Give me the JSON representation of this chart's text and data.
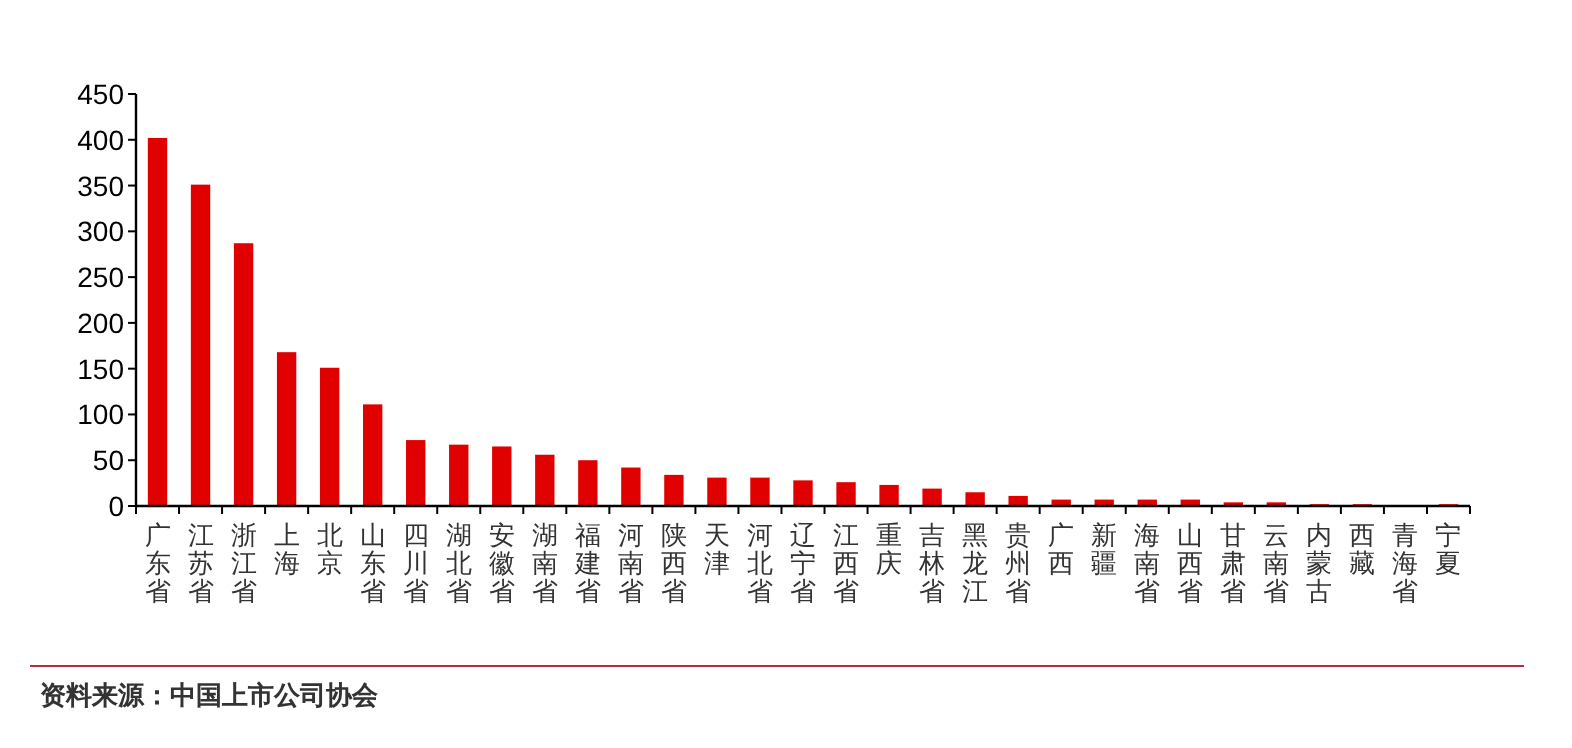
{
  "chart_data": {
    "type": "bar",
    "categories": [
      "广东省",
      "江苏省",
      "浙江省",
      "上海",
      "北京",
      "山东省",
      "四川省",
      "湖北省",
      "安徽省",
      "湖南省",
      "福建省",
      "河南省",
      "陕西省",
      "天津",
      "河北省",
      "辽宁省",
      "江西省",
      "重庆",
      "吉林省",
      "黑龙江",
      "贵州省",
      "广西",
      "新疆",
      "海南省",
      "山西省",
      "甘肃省",
      "云南省",
      "内蒙古",
      "西藏",
      "青海省",
      "宁夏"
    ],
    "values": [
      402,
      351,
      287,
      168,
      151,
      111,
      72,
      67,
      65,
      56,
      50,
      42,
      34,
      31,
      31,
      28,
      26,
      23,
      19,
      15,
      11,
      7,
      7,
      7,
      7,
      4,
      4,
      2,
      2,
      0,
      2
    ],
    "color": "#e00000",
    "ylim": [
      0,
      450
    ],
    "yticks": [
      0,
      50,
      100,
      150,
      200,
      250,
      300,
      350,
      400,
      450
    ],
    "grid": false,
    "annotations": [
      "资料来源：中国上市公司协会"
    ]
  }
}
